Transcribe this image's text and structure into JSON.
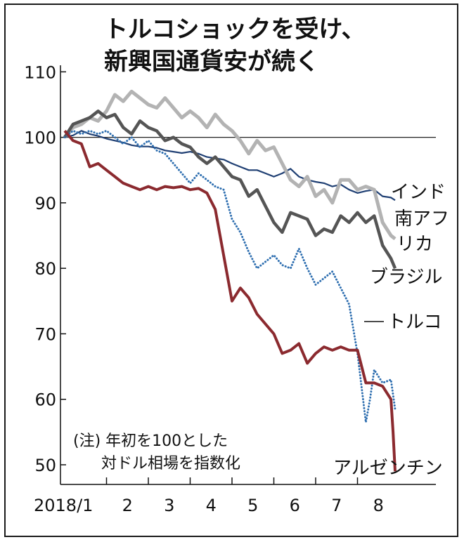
{
  "chart_data": {
    "type": "line",
    "title_lines": [
      "トルコショックを受け、",
      "新興国通貨安が続く"
    ],
    "note_lines": [
      "(注) 年初を100とした",
      "対ドル相場を指数化"
    ],
    "x_tick_labels": [
      "2018/1",
      "2",
      "3",
      "4",
      "5",
      "6",
      "7",
      "8"
    ],
    "y_ticks": [
      110,
      100,
      90,
      80,
      70,
      60,
      50
    ],
    "ylim": [
      47,
      111
    ],
    "xlim": [
      0,
      8
    ],
    "reference_line": 100,
    "series": [
      {
        "name": "インド",
        "label_lines": [
          "インド"
        ],
        "color": "#1f3f73",
        "style": "solid",
        "x": [
          0,
          0.2,
          0.4,
          0.6,
          0.8,
          1.0,
          1.2,
          1.4,
          1.6,
          1.8,
          2.0,
          2.2,
          2.4,
          2.6,
          2.8,
          3.0,
          3.2,
          3.4,
          3.6,
          3.8,
          4.0,
          4.2,
          4.4,
          4.6,
          4.8,
          5.0,
          5.2,
          5.4,
          5.6,
          5.8,
          6.0,
          6.2,
          6.4,
          6.6,
          6.8,
          7.0,
          7.2,
          7.4,
          7.6,
          7.8,
          7.9
        ],
        "y": [
          100,
          100.3,
          101,
          100.5,
          100.2,
          99.8,
          99.5,
          99.2,
          98.8,
          98.6,
          98.6,
          98.4,
          98.0,
          97.8,
          97.6,
          97.8,
          97.5,
          97.0,
          96.8,
          96.6,
          96.0,
          95.5,
          95.0,
          95.0,
          94.5,
          94.0,
          94.5,
          95.2,
          94.0,
          93.5,
          93.2,
          93.0,
          92.5,
          92.8,
          92.0,
          91.5,
          91.8,
          92.0,
          91.0,
          90.8,
          90.4
        ]
      },
      {
        "name": "南アフリカ",
        "label_lines": [
          "南アフ",
          "リカ"
        ],
        "color": "#b3b3b3",
        "style": "solid",
        "x": [
          0,
          0.2,
          0.4,
          0.6,
          0.8,
          1.0,
          1.2,
          1.4,
          1.6,
          1.8,
          2.0,
          2.2,
          2.4,
          2.6,
          2.8,
          3.0,
          3.2,
          3.4,
          3.6,
          3.8,
          4.0,
          4.2,
          4.4,
          4.6,
          4.8,
          5.0,
          5.2,
          5.4,
          5.6,
          5.8,
          6.0,
          6.2,
          6.4,
          6.6,
          6.8,
          7.0,
          7.2,
          7.4,
          7.6,
          7.8,
          7.9
        ],
        "y": [
          100,
          101.5,
          102,
          103,
          102.5,
          104,
          106.5,
          105.5,
          107,
          106,
          105,
          104.5,
          106,
          104.5,
          103,
          104,
          103,
          101.5,
          103.5,
          102,
          101,
          99.5,
          97.5,
          99.5,
          98,
          98.5,
          96,
          93.5,
          92.5,
          94,
          91,
          92,
          90,
          93.5,
          93.5,
          92,
          92.5,
          92,
          87,
          85,
          84.5
        ]
      },
      {
        "name": "ブラジル",
        "label_lines": [
          "ブラジル"
        ],
        "color": "#555555",
        "style": "solid",
        "x": [
          0,
          0.2,
          0.4,
          0.6,
          0.8,
          1.0,
          1.2,
          1.4,
          1.6,
          1.8,
          2.0,
          2.2,
          2.4,
          2.6,
          2.8,
          3.0,
          3.2,
          3.4,
          3.6,
          3.8,
          4.0,
          4.2,
          4.4,
          4.6,
          4.8,
          5.0,
          5.2,
          5.4,
          5.6,
          5.8,
          6.0,
          6.2,
          6.4,
          6.6,
          6.8,
          7.0,
          7.2,
          7.4,
          7.6,
          7.8,
          7.9
        ],
        "y": [
          100,
          102,
          102.5,
          103,
          104,
          103,
          103.5,
          101.5,
          100.5,
          102.5,
          101.5,
          101,
          99.5,
          100,
          99,
          98.5,
          97,
          96,
          97,
          95.5,
          94,
          93.5,
          91,
          92,
          89.5,
          87,
          85.5,
          88.5,
          88,
          87.5,
          85,
          86,
          85.5,
          88,
          87,
          88.5,
          87,
          88,
          83.5,
          81.5,
          80
        ]
      },
      {
        "name": "トルコ",
        "label_lines": [
          "トルコ"
        ],
        "color": "#2f6fb0",
        "style": "dotted",
        "x": [
          0,
          0.2,
          0.4,
          0.6,
          0.8,
          1.0,
          1.2,
          1.4,
          1.6,
          1.8,
          2.0,
          2.2,
          2.4,
          2.6,
          2.8,
          3.0,
          3.2,
          3.4,
          3.6,
          3.8,
          4.0,
          4.2,
          4.4,
          4.6,
          4.8,
          5.0,
          5.2,
          5.4,
          5.6,
          5.8,
          6.0,
          6.2,
          6.4,
          6.6,
          6.8,
          7.0,
          7.2,
          7.3,
          7.4,
          7.6,
          7.8,
          7.9
        ],
        "y": [
          100,
          101,
          100.5,
          101,
          100.5,
          101,
          100,
          99,
          100,
          98.5,
          99.5,
          98,
          97.5,
          96,
          94.5,
          93,
          94.5,
          93.5,
          92.5,
          92,
          87.5,
          85.5,
          82.5,
          80,
          81,
          82,
          80.5,
          80,
          83,
          80,
          77.5,
          78.5,
          79.5,
          77,
          74.5,
          67,
          56.5,
          60,
          64.5,
          62.5,
          63,
          58.5
        ]
      },
      {
        "name": "アルゼンチン",
        "label_lines": [
          "アルゼンチン"
        ],
        "color": "#8b2a2f",
        "style": "solid",
        "x": [
          0,
          0.2,
          0.4,
          0.6,
          0.8,
          1.0,
          1.2,
          1.4,
          1.6,
          1.8,
          2.0,
          2.2,
          2.4,
          2.6,
          2.8,
          3.0,
          3.2,
          3.4,
          3.6,
          3.8,
          4.0,
          4.2,
          4.4,
          4.6,
          4.8,
          5.0,
          5.2,
          5.4,
          5.6,
          5.8,
          6.0,
          6.2,
          6.4,
          6.6,
          6.8,
          7.0,
          7.2,
          7.4,
          7.6,
          7.8,
          7.85,
          7.9
        ],
        "y": [
          101,
          99.5,
          99,
          95.5,
          96,
          95,
          94,
          93,
          92.5,
          92,
          92.5,
          92,
          92.5,
          92.3,
          92.5,
          92,
          92.2,
          91.5,
          89,
          82,
          75,
          77,
          75.5,
          73,
          71.5,
          70,
          67,
          67.5,
          68.5,
          65.5,
          67,
          68,
          67.5,
          68,
          67.5,
          67.5,
          62.5,
          62.5,
          62,
          60,
          55,
          49
        ]
      }
    ]
  }
}
